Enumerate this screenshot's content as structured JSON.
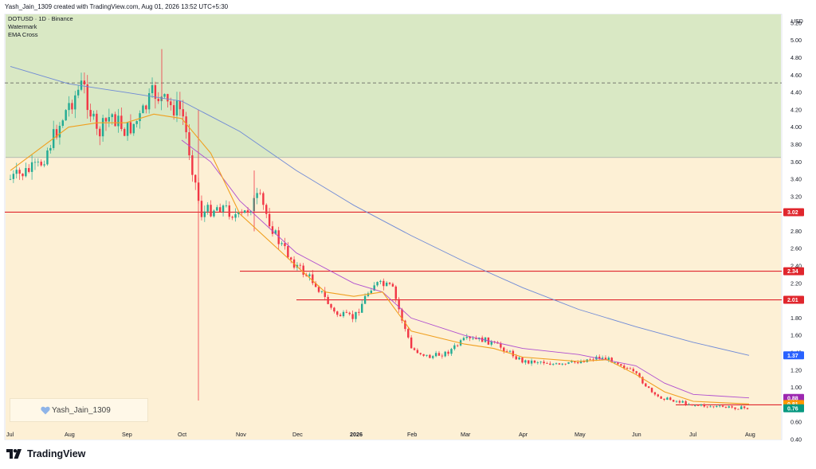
{
  "header": {
    "text": "Yash_Jain_1309 created with TradingView.com, Aug 01, 2026 13:52 UTC+5:30"
  },
  "legend": {
    "symbol": "DOTUSD · 1D · Binance",
    "line2": "Watermark",
    "line3": "EMA Cross"
  },
  "watermark": {
    "text": "Yash_Jain_1309",
    "icon": "heart-icon"
  },
  "brand": {
    "text": "TradingView",
    "icon": "tradingview-logo-icon"
  },
  "colors": {
    "upper_zone": "#d9e8c4",
    "lower_zone": "#fdf0d5",
    "up_candle": "#22ab94",
    "down_candle": "#f23645",
    "ema_fast": "#f0a020",
    "ema_mid": "#b04fcf",
    "ema_slow": "#6f8ad6",
    "resistance": "#e0262d"
  },
  "chart_data": {
    "type": "candlestick",
    "currency": "USD",
    "x_ticks": [
      "Jul",
      "Aug",
      "Sep",
      "Oct",
      "Nov",
      "Dec",
      "2026",
      "Feb",
      "Mar",
      "Apr",
      "May",
      "Jun",
      "Jul",
      "Aug"
    ],
    "y_ticks": [
      "5.20",
      "5.00",
      "4.80",
      "4.60",
      "4.40",
      "4.20",
      "4.00",
      "3.80",
      "3.60",
      "3.40",
      "3.20",
      "3.00",
      "2.80",
      "2.60",
      "2.40",
      "2.20",
      "2.00",
      "1.80",
      "1.60",
      "1.40",
      "1.20",
      "1.00",
      "0.80",
      "0.60",
      "0.40"
    ],
    "ylim": [
      0.4,
      5.3
    ],
    "zones": [
      {
        "name": "upper",
        "from": 3.65,
        "to": 5.3
      },
      {
        "name": "lower",
        "from": 0.4,
        "to": 3.65
      }
    ],
    "dashed_level": 4.51,
    "horizontal_levels": [
      {
        "value": 3.02,
        "label": "3.02",
        "from_month": "Jul"
      },
      {
        "value": 2.34,
        "label": "2.34",
        "from_month": "Nov"
      },
      {
        "value": 2.01,
        "label": "2.01",
        "from_month": "Dec"
      },
      {
        "value": 0.8,
        "label": "0.80",
        "from_month": "Jun"
      }
    ],
    "price_labels": [
      {
        "value": 1.37,
        "label": "1.37",
        "series": "EMA slow"
      },
      {
        "value": 0.88,
        "label": "0.88",
        "series": "EMA mid"
      },
      {
        "value": 0.81,
        "label": "0.81",
        "series": "EMA fast"
      },
      {
        "value": 0.76,
        "label": "0.76",
        "series": "close"
      }
    ],
    "close_path": [
      [
        "Jul",
        3.4
      ],
      [
        "Jul",
        3.55
      ],
      [
        "Aug",
        4.25
      ],
      [
        "Aug",
        4.5
      ],
      [
        "Aug",
        3.9
      ],
      [
        "Aug",
        4.15
      ],
      [
        "Sep",
        3.95
      ],
      [
        "Sep",
        4.1
      ],
      [
        "Sep",
        4.4
      ],
      [
        "Sep",
        4.25
      ],
      [
        "Oct",
        4.2
      ],
      [
        "Oct",
        3.0
      ],
      [
        "Oct",
        3.1
      ],
      [
        "Nov",
        2.95
      ],
      [
        "Nov",
        3.2
      ],
      [
        "Nov",
        2.7
      ],
      [
        "Dec",
        2.4
      ],
      [
        "Dec",
        2.2
      ],
      [
        "Dec",
        1.85
      ],
      [
        "2026",
        1.8
      ],
      [
        "2026",
        2.2
      ],
      [
        "2026",
        2.15
      ],
      [
        "Feb",
        1.45
      ],
      [
        "Feb",
        1.35
      ],
      [
        "Feb",
        1.4
      ],
      [
        "Mar",
        1.55
      ],
      [
        "Mar",
        1.55
      ],
      [
        "Mar",
        1.45
      ],
      [
        "Apr",
        1.3
      ],
      [
        "Apr",
        1.3
      ],
      [
        "Apr",
        1.25
      ],
      [
        "May",
        1.3
      ],
      [
        "May",
        1.35
      ],
      [
        "May",
        1.3
      ],
      [
        "Jun",
        1.15
      ],
      [
        "Jun",
        0.9
      ],
      [
        "Jun",
        0.85
      ],
      [
        "Jul",
        0.8
      ],
      [
        "Jul",
        0.78
      ],
      [
        "Jul",
        0.77
      ],
      [
        "Aug",
        0.76
      ]
    ],
    "ema_fast": [
      [
        "Jul",
        3.5
      ],
      [
        "Aug",
        4.0
      ],
      [
        "Aug",
        4.05
      ],
      [
        "Sep",
        4.05
      ],
      [
        "Sep",
        4.15
      ],
      [
        "Oct",
        4.1
      ],
      [
        "Oct",
        3.7
      ],
      [
        "Nov",
        3.0
      ],
      [
        "Dec",
        2.4
      ],
      [
        "Dec",
        2.1
      ],
      [
        "2026",
        2.05
      ],
      [
        "2026",
        2.1
      ],
      [
        "Feb",
        1.65
      ],
      [
        "Mar",
        1.5
      ],
      [
        "Mar",
        1.45
      ],
      [
        "Apr",
        1.35
      ],
      [
        "May",
        1.3
      ],
      [
        "May",
        1.32
      ],
      [
        "Jun",
        1.15
      ],
      [
        "Jun",
        0.95
      ],
      [
        "Jul",
        0.84
      ],
      [
        "Aug",
        0.81
      ]
    ],
    "ema_mid": [
      [
        "Oct",
        3.85
      ],
      [
        "Oct",
        3.6
      ],
      [
        "Nov",
        3.15
      ],
      [
        "Dec",
        2.55
      ],
      [
        "2026",
        2.2
      ],
      [
        "2026",
        2.1
      ],
      [
        "Feb",
        1.8
      ],
      [
        "Mar",
        1.6
      ],
      [
        "Apr",
        1.45
      ],
      [
        "May",
        1.38
      ],
      [
        "Jun",
        1.25
      ],
      [
        "Jun",
        1.05
      ],
      [
        "Jul",
        0.92
      ],
      [
        "Aug",
        0.88
      ]
    ],
    "ema_slow": [
      [
        "Jul",
        4.7
      ],
      [
        "Aug",
        4.5
      ],
      [
        "Sep",
        4.4
      ],
      [
        "Oct",
        4.3
      ],
      [
        "Nov",
        3.95
      ],
      [
        "Dec",
        3.5
      ],
      [
        "2026",
        3.1
      ],
      [
        "Feb",
        2.75
      ],
      [
        "Mar",
        2.45
      ],
      [
        "Apr",
        2.15
      ],
      [
        "May",
        1.9
      ],
      [
        "Jun",
        1.7
      ],
      [
        "Jul",
        1.52
      ],
      [
        "Aug",
        1.37
      ]
    ]
  }
}
